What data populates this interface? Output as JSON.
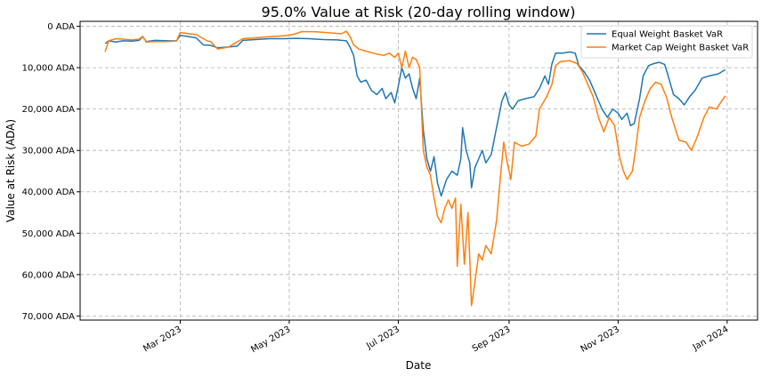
{
  "chart_data": {
    "type": "line",
    "title": "95.0% Value at Risk (20-day rolling window)",
    "xlabel": "Date",
    "ylabel": "Value at Risk (ADA)",
    "x_ticks": [
      "Mar 2023",
      "May 2023",
      "Jul 2023",
      "Sep 2023",
      "Nov 2023",
      "Jan 2024"
    ],
    "x_tick_dates": [
      "2023-03-01",
      "2023-05-01",
      "2023-07-01",
      "2023-09-01",
      "2023-11-01",
      "2024-01-01"
    ],
    "y_ticks": [
      "0 ADA",
      "10,000 ADA",
      "20,000 ADA",
      "30,000 ADA",
      "40,000 ADA",
      "50,000 ADA",
      "60,000 ADA",
      "70,000 ADA"
    ],
    "y_tick_values": [
      0,
      10000,
      20000,
      30000,
      40000,
      50000,
      60000,
      70000
    ],
    "ylim": [
      71000,
      -1200
    ],
    "y_inverted": true,
    "xlim": [
      "2023-01-04",
      "2024-01-18"
    ],
    "grid": true,
    "legend_position": "top-right",
    "series": [
      {
        "name": "Equal Weight Basket VaR",
        "color": "#1f77b4",
        "points": [
          [
            "2023-01-18",
            4200
          ],
          [
            "2023-01-20",
            3500
          ],
          [
            "2023-01-24",
            3800
          ],
          [
            "2023-01-28",
            3500
          ],
          [
            "2023-02-02",
            3600
          ],
          [
            "2023-02-06",
            3400
          ],
          [
            "2023-02-08",
            2500
          ],
          [
            "2023-02-10",
            3700
          ],
          [
            "2023-02-15",
            3400
          ],
          [
            "2023-02-22",
            3500
          ],
          [
            "2023-02-27",
            3500
          ],
          [
            "2023-03-01",
            2200
          ],
          [
            "2023-03-06",
            2500
          ],
          [
            "2023-03-10",
            2800
          ],
          [
            "2023-03-14",
            4500
          ],
          [
            "2023-03-18",
            4600
          ],
          [
            "2023-03-22",
            5200
          ],
          [
            "2023-03-28",
            5000
          ],
          [
            "2023-04-02",
            4800
          ],
          [
            "2023-04-05",
            3400
          ],
          [
            "2023-04-12",
            3200
          ],
          [
            "2023-04-20",
            3000
          ],
          [
            "2023-04-28",
            3000
          ],
          [
            "2023-05-05",
            2900
          ],
          [
            "2023-05-12",
            3000
          ],
          [
            "2023-05-20",
            3200
          ],
          [
            "2023-05-28",
            3300
          ],
          [
            "2023-06-02",
            3500
          ],
          [
            "2023-06-04",
            5000
          ],
          [
            "2023-06-06",
            7000
          ],
          [
            "2023-06-08",
            12000
          ],
          [
            "2023-06-10",
            13500
          ],
          [
            "2023-06-13",
            13000
          ],
          [
            "2023-06-16",
            15500
          ],
          [
            "2023-06-19",
            16500
          ],
          [
            "2023-06-22",
            15000
          ],
          [
            "2023-06-24",
            17500
          ],
          [
            "2023-06-27",
            16000
          ],
          [
            "2023-06-29",
            18500
          ],
          [
            "2023-07-01",
            14500
          ],
          [
            "2023-07-03",
            10000
          ],
          [
            "2023-07-05",
            12500
          ],
          [
            "2023-07-07",
            11500
          ],
          [
            "2023-07-09",
            15000
          ],
          [
            "2023-07-11",
            17500
          ],
          [
            "2023-07-13",
            12500
          ],
          [
            "2023-07-15",
            25000
          ],
          [
            "2023-07-17",
            32000
          ],
          [
            "2023-07-19",
            35000
          ],
          [
            "2023-07-21",
            31500
          ],
          [
            "2023-07-23",
            38000
          ],
          [
            "2023-07-25",
            41000
          ],
          [
            "2023-07-28",
            37000
          ],
          [
            "2023-07-31",
            35000
          ],
          [
            "2023-08-03",
            36000
          ],
          [
            "2023-08-05",
            32000
          ],
          [
            "2023-08-06",
            24500
          ],
          [
            "2023-08-08",
            30000
          ],
          [
            "2023-08-10",
            33000
          ],
          [
            "2023-08-11",
            39000
          ],
          [
            "2023-08-13",
            34000
          ],
          [
            "2023-08-15",
            32000
          ],
          [
            "2023-08-17",
            30000
          ],
          [
            "2023-08-19",
            33000
          ],
          [
            "2023-08-22",
            31000
          ],
          [
            "2023-08-25",
            24500
          ],
          [
            "2023-08-28",
            18000
          ],
          [
            "2023-08-30",
            16000
          ],
          [
            "2023-09-01",
            19000
          ],
          [
            "2023-09-03",
            20000
          ],
          [
            "2023-09-06",
            18000
          ],
          [
            "2023-09-10",
            17500
          ],
          [
            "2023-09-15",
            17000
          ],
          [
            "2023-09-18",
            15000
          ],
          [
            "2023-09-21",
            12000
          ],
          [
            "2023-09-23",
            14000
          ],
          [
            "2023-09-25",
            9000
          ],
          [
            "2023-09-27",
            6500
          ],
          [
            "2023-10-01",
            6500
          ],
          [
            "2023-10-05",
            6200
          ],
          [
            "2023-10-08",
            6500
          ],
          [
            "2023-10-10",
            9500
          ],
          [
            "2023-10-13",
            11000
          ],
          [
            "2023-10-16",
            13000
          ],
          [
            "2023-10-20",
            17000
          ],
          [
            "2023-10-23",
            20000
          ],
          [
            "2023-10-26",
            22000
          ],
          [
            "2023-10-29",
            20000
          ],
          [
            "2023-11-01",
            21000
          ],
          [
            "2023-11-03",
            22500
          ],
          [
            "2023-11-06",
            21000
          ],
          [
            "2023-11-08",
            24000
          ],
          [
            "2023-11-10",
            23500
          ],
          [
            "2023-11-13",
            17500
          ],
          [
            "2023-11-15",
            12000
          ],
          [
            "2023-11-18",
            9500
          ],
          [
            "2023-11-21",
            9000
          ],
          [
            "2023-11-24",
            8700
          ],
          [
            "2023-11-27",
            9200
          ],
          [
            "2023-11-29",
            12000
          ],
          [
            "2023-12-02",
            16500
          ],
          [
            "2023-12-05",
            17500
          ],
          [
            "2023-12-08",
            19000
          ],
          [
            "2023-12-11",
            17000
          ],
          [
            "2023-12-14",
            15500
          ],
          [
            "2023-12-18",
            12500
          ],
          [
            "2023-12-22",
            12000
          ],
          [
            "2023-12-27",
            11500
          ],
          [
            "2023-12-31",
            10500
          ]
        ]
      },
      {
        "name": "Market Cap Weight Basket VaR",
        "color": "#ff7f0e",
        "points": [
          [
            "2023-01-18",
            6200
          ],
          [
            "2023-01-20",
            3500
          ],
          [
            "2023-01-24",
            3000
          ],
          [
            "2023-01-28",
            3100
          ],
          [
            "2023-02-02",
            3300
          ],
          [
            "2023-02-06",
            3100
          ],
          [
            "2023-02-08",
            2400
          ],
          [
            "2023-02-10",
            3800
          ],
          [
            "2023-02-15",
            3700
          ],
          [
            "2023-02-22",
            3700
          ],
          [
            "2023-02-27",
            3500
          ],
          [
            "2023-03-01",
            1500
          ],
          [
            "2023-03-06",
            1800
          ],
          [
            "2023-03-10",
            2000
          ],
          [
            "2023-03-16",
            3500
          ],
          [
            "2023-03-18",
            3700
          ],
          [
            "2023-03-22",
            5500
          ],
          [
            "2023-03-28",
            5000
          ],
          [
            "2023-04-01",
            4000
          ],
          [
            "2023-04-05",
            3000
          ],
          [
            "2023-04-12",
            2800
          ],
          [
            "2023-04-20",
            2500
          ],
          [
            "2023-04-28",
            2300
          ],
          [
            "2023-05-03",
            2000
          ],
          [
            "2023-05-08",
            1300
          ],
          [
            "2023-05-15",
            1300
          ],
          [
            "2023-05-22",
            1500
          ],
          [
            "2023-05-30",
            1800
          ],
          [
            "2023-06-02",
            1200
          ],
          [
            "2023-06-04",
            2500
          ],
          [
            "2023-06-06",
            4500
          ],
          [
            "2023-06-09",
            5500
          ],
          [
            "2023-06-13",
            6000
          ],
          [
            "2023-06-17",
            6500
          ],
          [
            "2023-06-20",
            6800
          ],
          [
            "2023-06-23",
            7000
          ],
          [
            "2023-06-26",
            6500
          ],
          [
            "2023-06-29",
            7500
          ],
          [
            "2023-07-01",
            6500
          ],
          [
            "2023-07-03",
            10000
          ],
          [
            "2023-07-05",
            6000
          ],
          [
            "2023-07-07",
            10000
          ],
          [
            "2023-07-09",
            7500
          ],
          [
            "2023-07-11",
            8000
          ],
          [
            "2023-07-13",
            10000
          ],
          [
            "2023-07-15",
            30000
          ],
          [
            "2023-07-17",
            34000
          ],
          [
            "2023-07-19",
            36000
          ],
          [
            "2023-07-21",
            41500
          ],
          [
            "2023-07-23",
            46000
          ],
          [
            "2023-07-25",
            47500
          ],
          [
            "2023-07-27",
            44000
          ],
          [
            "2023-07-29",
            42000
          ],
          [
            "2023-07-31",
            44000
          ],
          [
            "2023-08-02",
            41500
          ],
          [
            "2023-08-03",
            58000
          ],
          [
            "2023-08-05",
            43000
          ],
          [
            "2023-08-07",
            57500
          ],
          [
            "2023-08-09",
            45000
          ],
          [
            "2023-08-11",
            67500
          ],
          [
            "2023-08-13",
            61500
          ],
          [
            "2023-08-15",
            55000
          ],
          [
            "2023-08-17",
            56500
          ],
          [
            "2023-08-19",
            53000
          ],
          [
            "2023-08-22",
            55000
          ],
          [
            "2023-08-25",
            47000
          ],
          [
            "2023-08-27",
            37000
          ],
          [
            "2023-08-29",
            28000
          ],
          [
            "2023-08-31",
            33000
          ],
          [
            "2023-09-02",
            37000
          ],
          [
            "2023-09-04",
            28000
          ],
          [
            "2023-09-08",
            29000
          ],
          [
            "2023-09-12",
            28500
          ],
          [
            "2023-09-16",
            26500
          ],
          [
            "2023-09-18",
            20000
          ],
          [
            "2023-09-22",
            17000
          ],
          [
            "2023-09-25",
            14000
          ],
          [
            "2023-09-27",
            9500
          ],
          [
            "2023-09-30",
            8500
          ],
          [
            "2023-10-05",
            8300
          ],
          [
            "2023-10-09",
            9000
          ],
          [
            "2023-10-12",
            11000
          ],
          [
            "2023-10-15",
            14000
          ],
          [
            "2023-10-18",
            17000
          ],
          [
            "2023-10-21",
            22000
          ],
          [
            "2023-10-24",
            25500
          ],
          [
            "2023-10-27",
            22000
          ],
          [
            "2023-10-30",
            24000
          ],
          [
            "2023-11-02",
            32000
          ],
          [
            "2023-11-04",
            35000
          ],
          [
            "2023-11-06",
            37000
          ],
          [
            "2023-11-09",
            35000
          ],
          [
            "2023-11-11",
            29000
          ],
          [
            "2023-11-13",
            22000
          ],
          [
            "2023-11-16",
            18000
          ],
          [
            "2023-11-19",
            15000
          ],
          [
            "2023-11-22",
            13500
          ],
          [
            "2023-11-25",
            14000
          ],
          [
            "2023-11-28",
            17000
          ],
          [
            "2023-12-01",
            22000
          ],
          [
            "2023-12-05",
            27500
          ],
          [
            "2023-12-09",
            28000
          ],
          [
            "2023-12-12",
            30000
          ],
          [
            "2023-12-15",
            27000
          ],
          [
            "2023-12-19",
            22000
          ],
          [
            "2023-12-22",
            19500
          ],
          [
            "2023-12-26",
            20000
          ],
          [
            "2023-12-29",
            18000
          ],
          [
            "2023-12-31",
            16800
          ]
        ]
      }
    ]
  }
}
